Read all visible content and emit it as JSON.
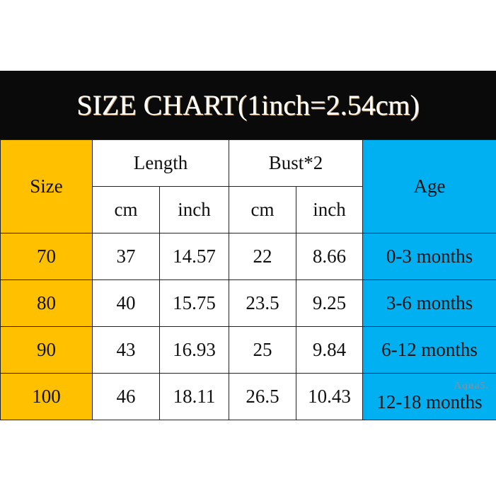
{
  "title": "SIZE CHART(1inch=2.54cm)",
  "headers": {
    "size": "Size",
    "length": "Length",
    "bust": "Bust*2",
    "age": "Age",
    "cm": "cm",
    "inch": "inch"
  },
  "rows": [
    {
      "size": "70",
      "length_cm": "37",
      "length_inch": "14.57",
      "bust_cm": "22",
      "bust_inch": "8.66",
      "age": "0-3 months"
    },
    {
      "size": "80",
      "length_cm": "40",
      "length_inch": "15.75",
      "bust_cm": "23.5",
      "bust_inch": "9.25",
      "age": "3-6 months"
    },
    {
      "size": "90",
      "length_cm": "43",
      "length_inch": "16.93",
      "bust_cm": "25",
      "bust_inch": "9.84",
      "age": "6-12 months"
    },
    {
      "size": "100",
      "length_cm": "46",
      "length_inch": "18.11",
      "bust_cm": "26.5",
      "bust_inch": "10.43",
      "age": "12-18 months"
    }
  ],
  "watermark": "Aqua5.",
  "colors": {
    "title_bg": "#0a0a0a",
    "size_col": "#FFC000",
    "age_col": "#00B0F0"
  }
}
